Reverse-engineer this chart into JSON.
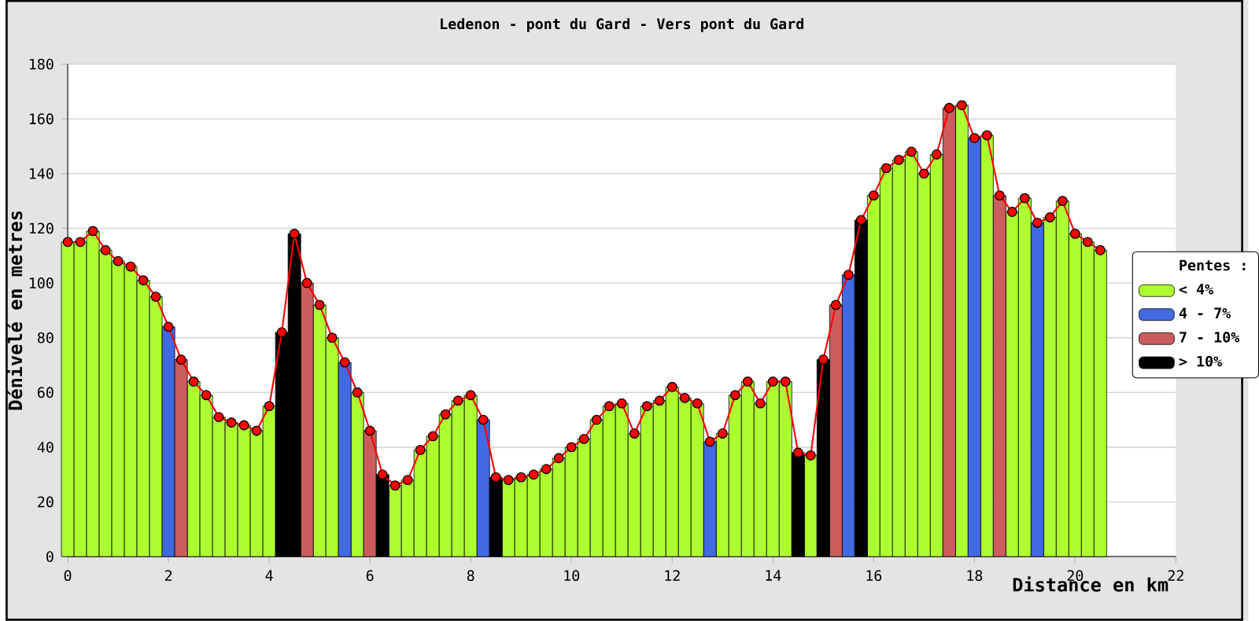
{
  "chart_data": {
    "type": "bar",
    "title": "Ledenon - pont du Gard - Vers pont du Gard",
    "xlabel": "Distance en km",
    "ylabel": "Dénivelé en metres",
    "legend_title": "Pentes :",
    "series": [
      {
        "name": "< 4%",
        "color": "#adff2f",
        "x": [
          0,
          0.25,
          0.5,
          0.75,
          1,
          1.25,
          1.5,
          1.75,
          2.5,
          2.75,
          3,
          3.25,
          3.5,
          3.75,
          4,
          5,
          5.25,
          5.75,
          6.5,
          6.75,
          7,
          7.25,
          7.5,
          7.75,
          8,
          8.75,
          9,
          9.25,
          9.5,
          9.75,
          10,
          10.25,
          10.5,
          10.75,
          11,
          11.25,
          11.5,
          11.75,
          12,
          12.25,
          12.5,
          13,
          13.25,
          13.5,
          13.75,
          14,
          14.25,
          14.75,
          16,
          16.25,
          16.5,
          16.75,
          17,
          17.25,
          17.75,
          18.25,
          18.75,
          19,
          19.5,
          19.75,
          20,
          20.25,
          20.5
        ],
        "values": [
          115,
          115,
          119,
          112,
          108,
          106,
          101,
          95,
          64,
          59,
          51,
          49,
          48,
          46,
          55,
          92,
          80,
          60,
          26,
          28,
          39,
          44,
          52,
          57,
          59,
          28,
          29,
          30,
          32,
          36,
          40,
          43,
          50,
          55,
          56,
          45,
          55,
          57,
          62,
          58,
          56,
          45,
          59,
          64,
          56,
          64,
          64,
          37,
          132,
          142,
          145,
          148,
          140,
          147,
          165,
          154,
          126,
          131,
          124,
          130,
          118,
          115,
          112
        ]
      },
      {
        "name": "4 - 7%",
        "color": "#4169e1",
        "x": [
          2,
          5.5,
          8.25,
          12.75,
          15.5,
          18,
          19.25
        ],
        "values": [
          84,
          71,
          50,
          42,
          103,
          153,
          122
        ]
      },
      {
        "name": "7 - 10%",
        "color": "#cd5c5c",
        "x": [
          2.25,
          4.75,
          6,
          15.25,
          17.5,
          18.5
        ],
        "values": [
          72,
          100,
          46,
          92,
          164,
          132
        ]
      },
      {
        "name": "> 10%",
        "color": "#000000",
        "x": [
          4.25,
          4.5,
          6.25,
          8.5,
          14.5,
          15,
          15.75
        ],
        "values": [
          82,
          118,
          30,
          29,
          38,
          72,
          123
        ]
      },
      {
        "type": "line",
        "color": "#ff0000",
        "x": [
          0,
          0.25,
          0.5,
          0.75,
          1,
          1.25,
          1.5,
          1.75,
          2,
          2.25,
          2.5,
          2.75,
          3,
          3.25,
          3.5,
          3.75,
          4,
          4.25,
          4.5,
          4.75,
          5,
          5.25,
          5.5,
          5.75,
          6,
          6.25,
          6.5,
          6.75,
          7,
          7.25,
          7.5,
          7.75,
          8,
          8.25,
          8.5,
          8.75,
          9,
          9.25,
          9.5,
          9.75,
          10,
          10.25,
          10.5,
          10.75,
          11,
          11.25,
          11.5,
          11.75,
          12,
          12.25,
          12.5,
          12.75,
          13,
          13.25,
          13.5,
          13.75,
          14,
          14.25,
          14.5,
          14.75,
          15,
          15.25,
          15.5,
          15.75,
          16,
          16.25,
          16.5,
          16.75,
          17,
          17.25,
          17.5,
          17.75,
          18,
          18.25,
          18.5,
          18.75,
          19,
          19.25,
          19.5,
          19.75,
          20,
          20.25,
          20.5
        ],
        "values": [
          115,
          115,
          119,
          112,
          108,
          106,
          101,
          95,
          84,
          72,
          64,
          59,
          51,
          49,
          48,
          46,
          55,
          82,
          118,
          100,
          92,
          80,
          71,
          60,
          46,
          30,
          26,
          28,
          39,
          44,
          52,
          57,
          59,
          50,
          29,
          28,
          29,
          30,
          32,
          36,
          40,
          43,
          50,
          55,
          56,
          45,
          55,
          57,
          62,
          58,
          56,
          42,
          45,
          59,
          64,
          56,
          64,
          64,
          38,
          37,
          72,
          92,
          103,
          123,
          132,
          142,
          145,
          148,
          140,
          147,
          164,
          165,
          153,
          154,
          132,
          126,
          131,
          122,
          124,
          130,
          118,
          115,
          112
        ]
      }
    ],
    "xlim": [
      0,
      22
    ],
    "xticks": [
      0,
      2,
      4,
      6,
      8,
      10,
      12,
      14,
      16,
      18,
      20,
      22
    ],
    "ylim": [
      0,
      180
    ],
    "yticks": [
      0,
      20,
      40,
      60,
      80,
      100,
      120,
      140,
      160,
      180
    ],
    "grid": "y",
    "legend": "right",
    "marker": "circle"
  }
}
